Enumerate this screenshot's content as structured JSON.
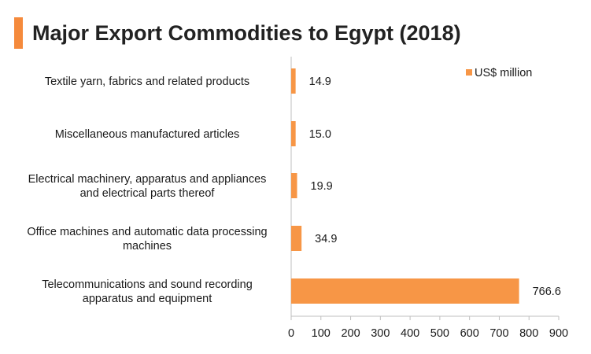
{
  "title": "Major Export Commodities to Egypt (2018)",
  "colors": {
    "accent": "#F58A3C",
    "bar": "#F79646",
    "axis": "#BFBFBF"
  },
  "chart_data": {
    "type": "bar",
    "orientation": "horizontal",
    "title": "Major Export Commodities to Egypt (2018)",
    "categories": [
      [
        "Textile yarn, fabrics and related products"
      ],
      [
        "Miscellaneous manufactured articles"
      ],
      [
        "Electrical machinery, apparatus and appliances",
        "and electrical parts thereof"
      ],
      [
        "Office machines and automatic data processing",
        "machines"
      ],
      [
        "Telecommunications and sound recording",
        "apparatus and equipment"
      ]
    ],
    "series": [
      {
        "name": "US$ million",
        "values": [
          14.9,
          15.0,
          19.9,
          34.9,
          766.6
        ],
        "labels": [
          "14.9",
          "15.0",
          "19.9",
          "34.9",
          "766.6"
        ]
      }
    ],
    "xlim": [
      0,
      900
    ],
    "xticks": [
      "0",
      "100",
      "200",
      "300",
      "400",
      "500",
      "600",
      "700",
      "800",
      "900"
    ],
    "xlabel": "",
    "ylabel": "",
    "grid": false,
    "legend_position": "top-right"
  }
}
